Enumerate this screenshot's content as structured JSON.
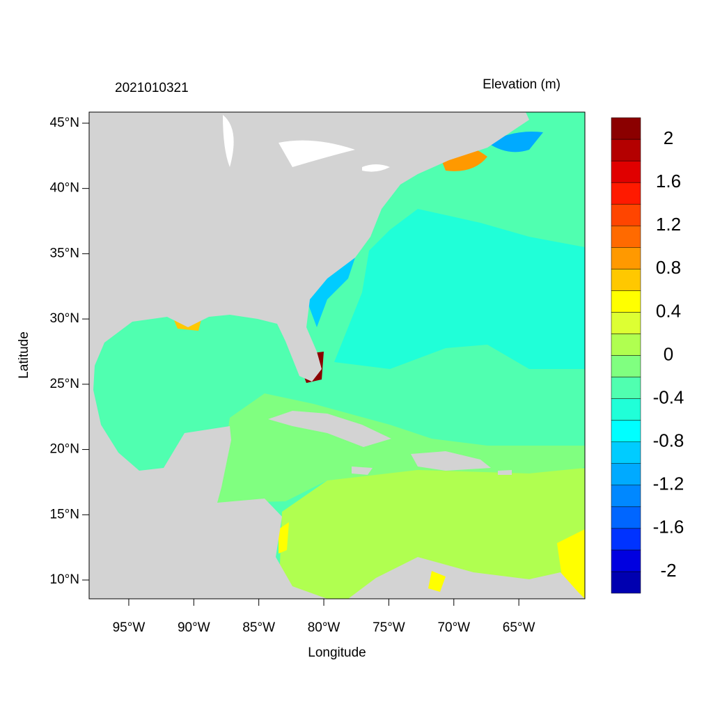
{
  "chart_data": {
    "type": "contour",
    "title": "2021010321",
    "colorbar_title": "Elevation (m)",
    "xlabel": "Longitude",
    "ylabel": "Latitude",
    "xlim": [
      -98.05,
      -59.92
    ],
    "ylim": [
      8.56,
      45.85
    ],
    "xticks": [
      {
        "value": -95,
        "label": "95°W"
      },
      {
        "value": -90,
        "label": "90°W"
      },
      {
        "value": -85,
        "label": "85°W"
      },
      {
        "value": -80,
        "label": "80°W"
      },
      {
        "value": -75,
        "label": "75°W"
      },
      {
        "value": -70,
        "label": "70°W"
      },
      {
        "value": -65,
        "label": "65°W"
      }
    ],
    "yticks": [
      {
        "value": 10,
        "label": "10°N"
      },
      {
        "value": 15,
        "label": "15°N"
      },
      {
        "value": 20,
        "label": "20°N"
      },
      {
        "value": 25,
        "label": "25°N"
      },
      {
        "value": 30,
        "label": "30°N"
      },
      {
        "value": 35,
        "label": "35°N"
      },
      {
        "value": 40,
        "label": "40°N"
      },
      {
        "value": 45,
        "label": "45°N"
      }
    ],
    "clim": [
      -2.2,
      2.2
    ],
    "colors": [
      "#0000b0",
      "#0000e0",
      "#0033ff",
      "#0066ff",
      "#0088ff",
      "#00aaff",
      "#00ccff",
      "#00ffff",
      "#20ffd8",
      "#50ffb0",
      "#80ff80",
      "#b0ff50",
      "#ddff33",
      "#ffff00",
      "#ffc800",
      "#ff9900",
      "#ff6a00",
      "#ff4500",
      "#ff1a00",
      "#e00000",
      "#b40000",
      "#8b0000"
    ],
    "cticks": [
      -2,
      -1.6,
      -1.2,
      -0.8,
      -0.4,
      0,
      0.4,
      0.8,
      1.2,
      1.6,
      2
    ]
  }
}
